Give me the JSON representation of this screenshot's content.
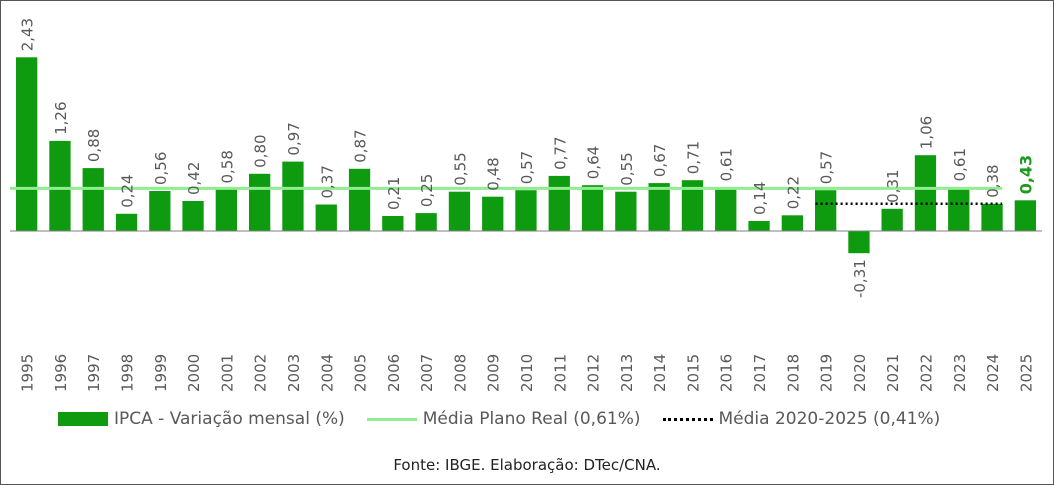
{
  "chart_data": {
    "type": "bar",
    "title": "",
    "xlabel": "",
    "ylabel": "",
    "categories": [
      "1995",
      "1996",
      "1997",
      "1998",
      "1999",
      "2000",
      "2001",
      "2002",
      "2003",
      "2004",
      "2005",
      "2006",
      "2007",
      "2008",
      "2009",
      "2010",
      "2011",
      "2012",
      "2013",
      "2014",
      "2015",
      "2016",
      "2017",
      "2018",
      "2019",
      "2020",
      "2021",
      "2022",
      "2023",
      "2024",
      "2025"
    ],
    "series": [
      {
        "name": "IPCA - Variação mensal (%)",
        "type": "bar",
        "color": "#0f9b0f",
        "values": [
          2.43,
          1.26,
          0.88,
          0.24,
          0.56,
          0.42,
          0.58,
          0.8,
          0.97,
          0.37,
          0.87,
          0.21,
          0.25,
          0.55,
          0.48,
          0.57,
          0.77,
          0.64,
          0.55,
          0.67,
          0.71,
          0.61,
          0.14,
          0.22,
          0.57,
          -0.31,
          0.31,
          1.06,
          0.61,
          0.38,
          0.43
        ],
        "labels": [
          "2,43",
          "1,26",
          "0,88",
          "0,24",
          "0,56",
          "0,42",
          "0,58",
          "0,80",
          "0,97",
          "0,37",
          "0,87",
          "0,21",
          "0,25",
          "0,55",
          "0,48",
          "0,57",
          "0,77",
          "0,64",
          "0,55",
          "0,67",
          "0,71",
          "0,61",
          "0,14",
          "0,22",
          "0,57",
          "-0,31",
          "0,31",
          "1,06",
          "0,61",
          "0,38",
          "0,43"
        ]
      },
      {
        "name": "Média Plano Real (0,61%)",
        "type": "line",
        "color": "#90ee90",
        "value": 0.61,
        "span": [
          "1995",
          "2024"
        ]
      },
      {
        "name": "Média 2020-2025 (0,41%)",
        "type": "dotted-line",
        "color": "#000000",
        "value": 0.41,
        "span": [
          "2019",
          "2024"
        ]
      }
    ],
    "ylim": [
      -1.5,
      2.5
    ],
    "grid": false,
    "legend_position": "bottom",
    "highlight_last": true,
    "highlight_color": "#1f9a1f"
  },
  "legend": {
    "bar_label": "IPCA - Variação mensal (%)",
    "line_label": "Média Plano Real (0,61%)",
    "dotted_label": "Média 2020-2025 (0,41%)"
  },
  "source": "Fonte: IBGE. Elaboração: DTec/CNA."
}
